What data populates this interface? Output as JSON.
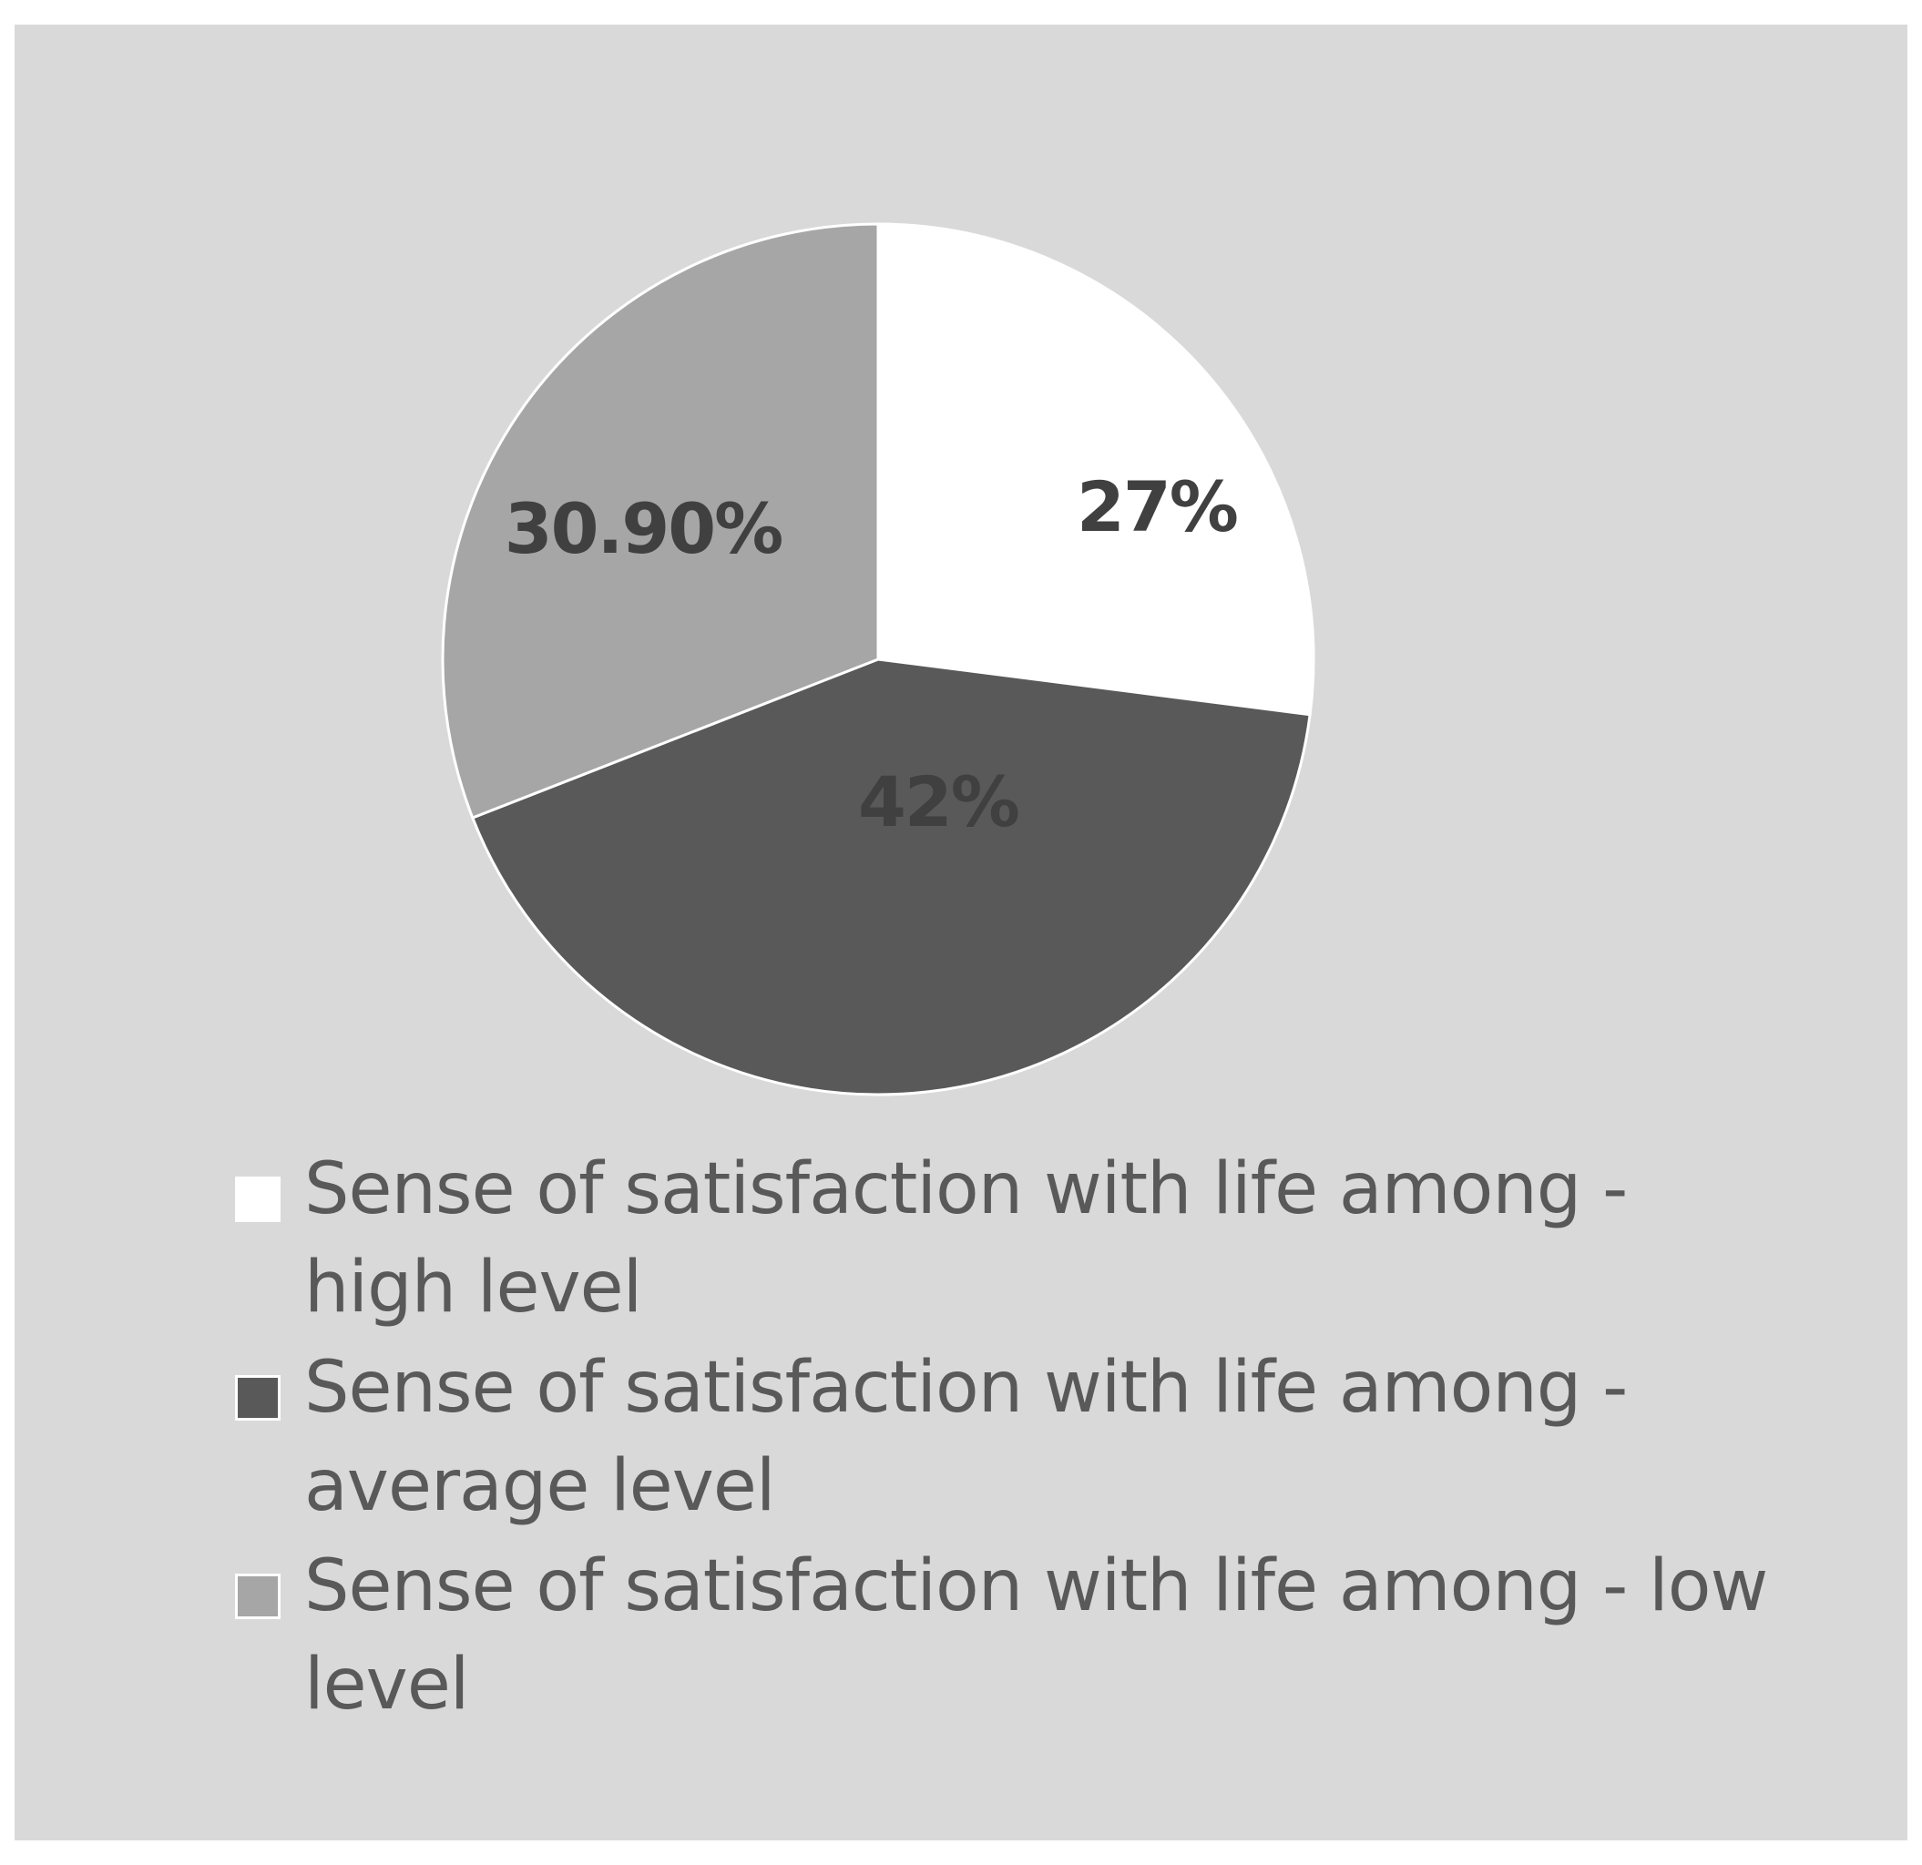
{
  "chart_data": {
    "type": "pie",
    "slices": [
      {
        "name": "Sense of satisfaction with life among - high level",
        "value": 27,
        "label": "27%",
        "color": "#ffffff"
      },
      {
        "name": "Sense of satisfaction with life among - average level",
        "value": 42,
        "label": "42%",
        "color": "#595959"
      },
      {
        "name": "Sense of satisfaction with life among - low level",
        "value": 30.9,
        "label": "30.90%",
        "color": "#a6a6a6"
      }
    ],
    "start_angle": "12 o'clock",
    "direction": "clockwise",
    "legend_position": "bottom",
    "background_color": "#d9d9d9"
  }
}
